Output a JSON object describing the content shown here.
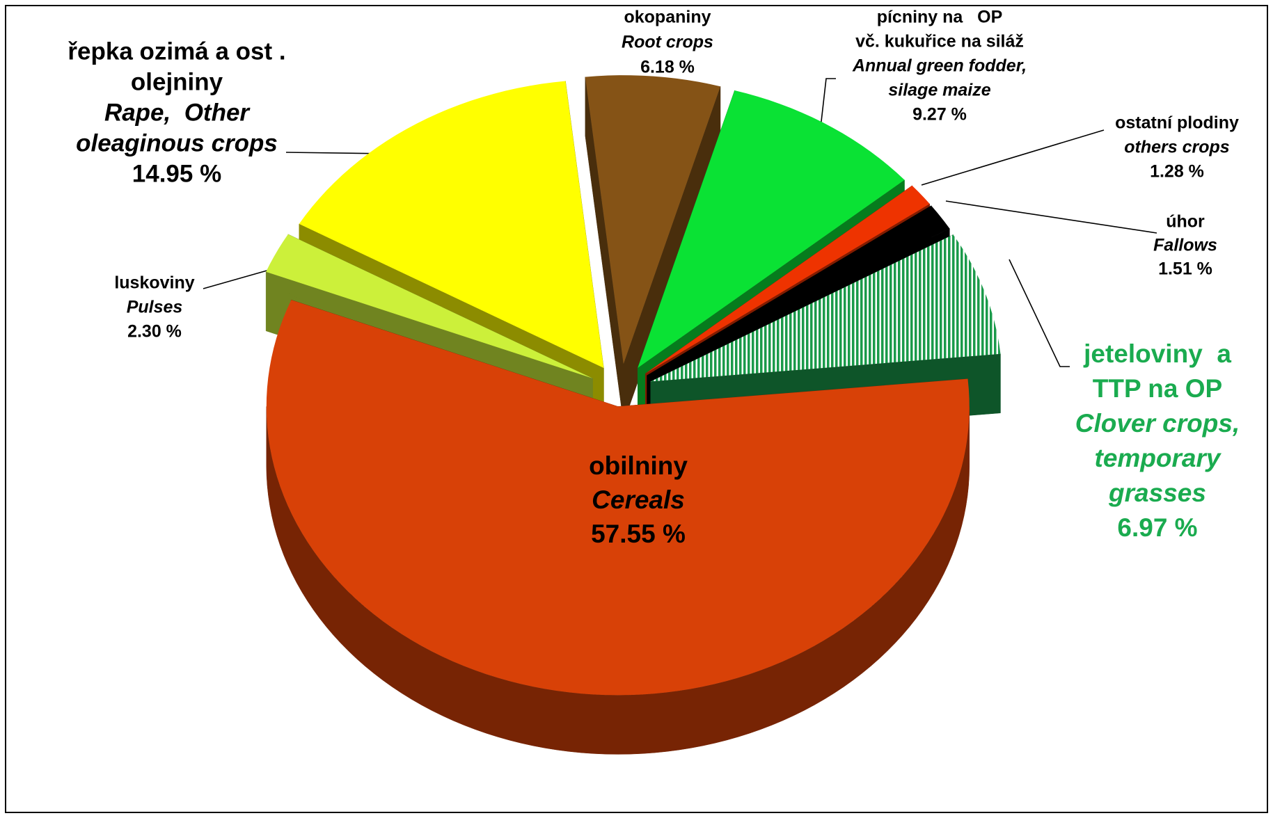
{
  "chart_data": {
    "type": "pie",
    "categories": [
      [
        "obilniny"
      ],
      [
        "luskoviny"
      ],
      [
        "řepka ozimá a ost .",
        "olejniny"
      ],
      [
        "okopaniny"
      ],
      [
        "pícniny na   OP",
        "vč. kukuřice na siláž"
      ],
      [
        "ostatní plodiny"
      ],
      [
        "úhor"
      ],
      [
        "jeteloviny  a",
        "TTP na OP"
      ]
    ],
    "categories_en": [
      [
        "Cereals"
      ],
      [
        "Pulses"
      ],
      [
        "Rape,  Other",
        "oleaginous crops"
      ],
      [
        "Root crops"
      ],
      [
        "Annual green fodder,",
        "silage maize"
      ],
      [
        "others crops"
      ],
      [
        "Fallows"
      ],
      [
        "Clover crops,",
        "temporary",
        "grasses"
      ]
    ],
    "values": [
      57.55,
      2.3,
      14.95,
      6.18,
      9.27,
      1.28,
      1.51,
      6.97
    ],
    "value_labels": [
      "57.55 %",
      "2.30 %",
      "14.95 %",
      "6.18 %",
      "9.27 %",
      "1.28 %",
      "1.51 %",
      "6.97 %"
    ],
    "colors": [
      "#d84107",
      "#ccf03a",
      "#ffff00",
      "#855316",
      "#0ae234",
      "#ee3300",
      "#000000",
      "#1a9a4a"
    ],
    "patterns": [
      null,
      null,
      null,
      null,
      null,
      null,
      null,
      "vertical-stripes"
    ],
    "label_colors": [
      "#000000",
      "#000000",
      "#000000",
      "#000000",
      "#000000",
      "#000000",
      "#000000",
      "#1aab4f"
    ]
  }
}
